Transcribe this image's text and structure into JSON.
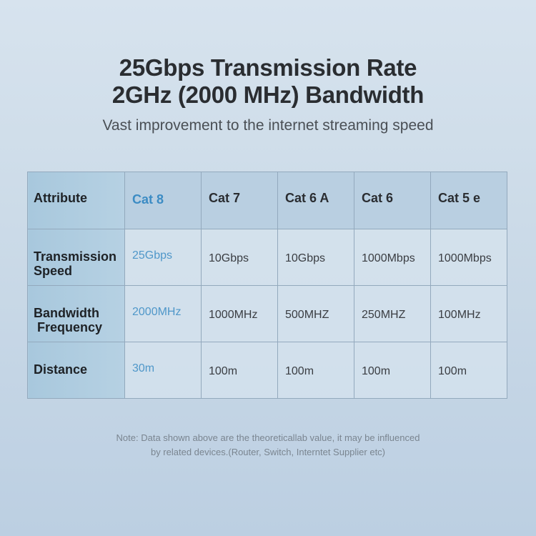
{
  "heading": {
    "line1": "25Gbps Transmission Rate",
    "line2": "2GHz (2000 MHz) Bandwidth",
    "subtitle": "Vast improvement to the internet streaming speed"
  },
  "table": {
    "headers": [
      "Attribute",
      "Cat 8",
      "Cat 7",
      "Cat 6 A",
      "Cat 6",
      "Cat 5 e"
    ],
    "rows": [
      {
        "label1": "Transmission",
        "label2": "Speed",
        "values": [
          "25Gbps",
          "10Gbps",
          "10Gbps",
          "1000Mbps",
          "1000Mbps"
        ]
      },
      {
        "label1": "Bandwidth",
        "label2": "Frequency",
        "values": [
          "2000MHz",
          "1000MHz",
          "500MHZ",
          "250MHZ",
          "100MHz"
        ]
      },
      {
        "label1": "Distance",
        "label2": "",
        "values": [
          "30m",
          "100m",
          "100m",
          "100m",
          "100m"
        ]
      }
    ],
    "highlight_color": "#4f97c9"
  },
  "note": {
    "line1": "Note: Data shown above are the theoreticallab value, it may be influenced",
    "line2": "by related devices.(Router, Switch, Interntet Supplier etc)"
  }
}
